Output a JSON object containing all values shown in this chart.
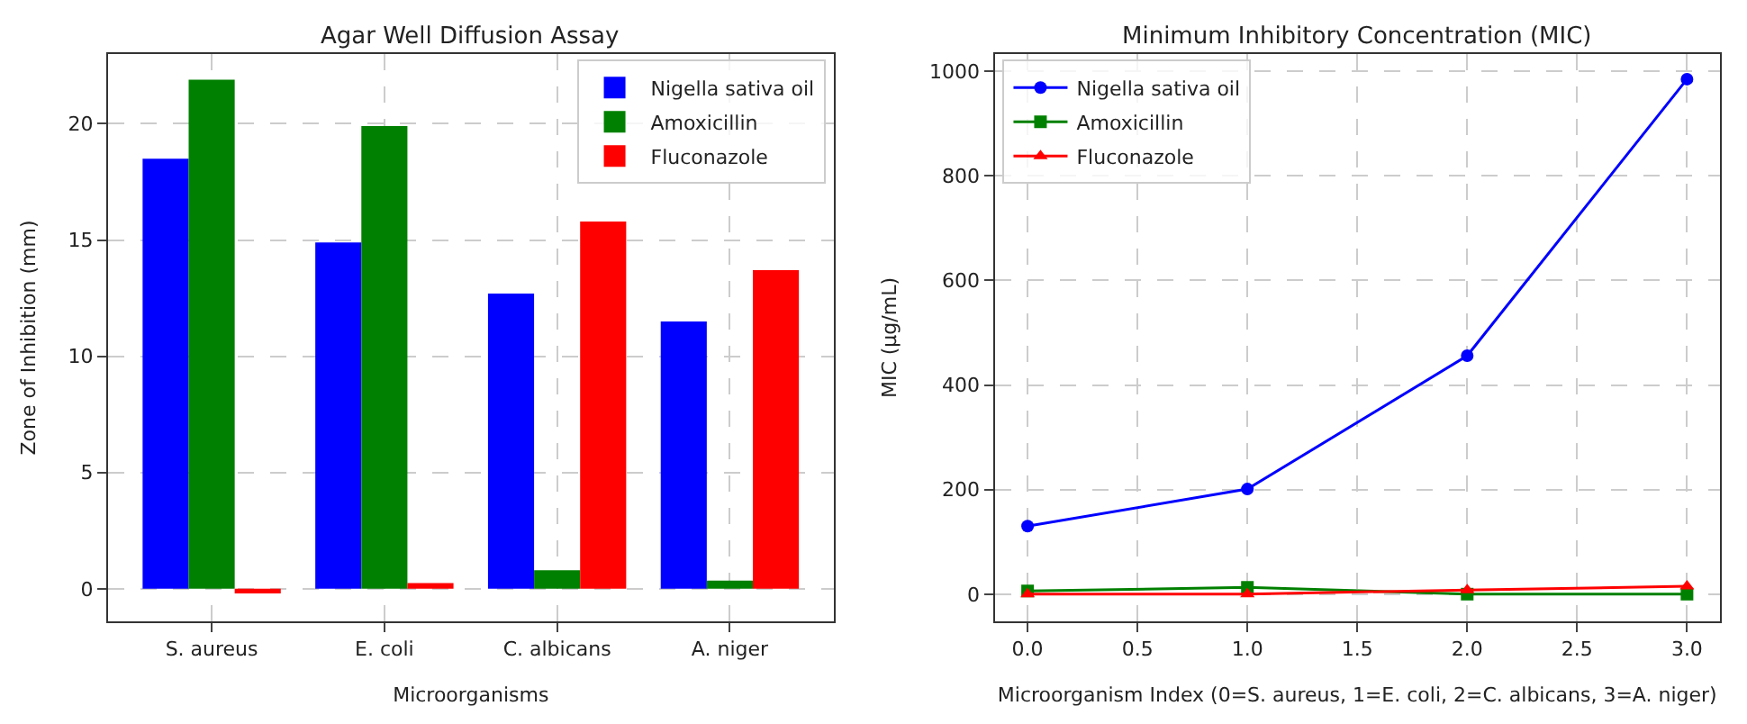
{
  "chart_data": [
    {
      "type": "bar",
      "title": "Agar Well Diffusion Assay",
      "xlabel": "Microorganisms",
      "ylabel": "Zone of Inhibition (mm)",
      "categories": [
        "S. aureus",
        "E. coli",
        "C. albicans",
        "A. niger"
      ],
      "series": [
        {
          "name": "Nigella sativa oil",
          "color": "#0000ff",
          "values": [
            18.5,
            14.9,
            12.7,
            11.5
          ]
        },
        {
          "name": "Amoxicillin",
          "color": "#008000",
          "values": [
            21.9,
            19.9,
            0.8,
            0.35
          ]
        },
        {
          "name": "Fluconazole",
          "color": "#ff0000",
          "values": [
            -0.2,
            0.25,
            15.8,
            13.7
          ]
        }
      ],
      "ylim": [
        -1.4,
        23
      ],
      "yticks": [
        0,
        5,
        10,
        15,
        20
      ],
      "grid": true,
      "legend": "top right"
    },
    {
      "type": "line",
      "title": "Minimum Inhibitory Concentration (MIC)",
      "xlabel": "Microorganism Index (0=S. aureus, 1=E. coli, 2=C. albicans, 3=A. niger)",
      "ylabel": "MIC (µg/mL)",
      "x": [
        0,
        1,
        2,
        3
      ],
      "series": [
        {
          "name": "Nigella sativa oil",
          "color": "#0000ff",
          "marker": "circle",
          "values": [
            130,
            201,
            456,
            985
          ]
        },
        {
          "name": "Amoxicillin",
          "color": "#008000",
          "marker": "square",
          "values": [
            6,
            13,
            0,
            0
          ]
        },
        {
          "name": "Fluconazole",
          "color": "#ff0000",
          "marker": "triangle",
          "values": [
            0,
            0,
            8,
            15
          ]
        }
      ],
      "xlim": [
        -0.15,
        3.15
      ],
      "xticks": [
        {
          "value": 0,
          "label": "0.0"
        },
        {
          "value": 0.5,
          "label": "0.5"
        },
        {
          "value": 1,
          "label": "1.0"
        },
        {
          "value": 1.5,
          "label": "1.5"
        },
        {
          "value": 2,
          "label": "2.0"
        },
        {
          "value": 2.5,
          "label": "2.5"
        },
        {
          "value": 3,
          "label": "3.0"
        }
      ],
      "ylim": [
        -52,
        1033
      ],
      "yticks": [
        0,
        200,
        400,
        600,
        800,
        1000
      ],
      "grid": true,
      "legend": "top left",
      "line_style": "solid"
    }
  ]
}
